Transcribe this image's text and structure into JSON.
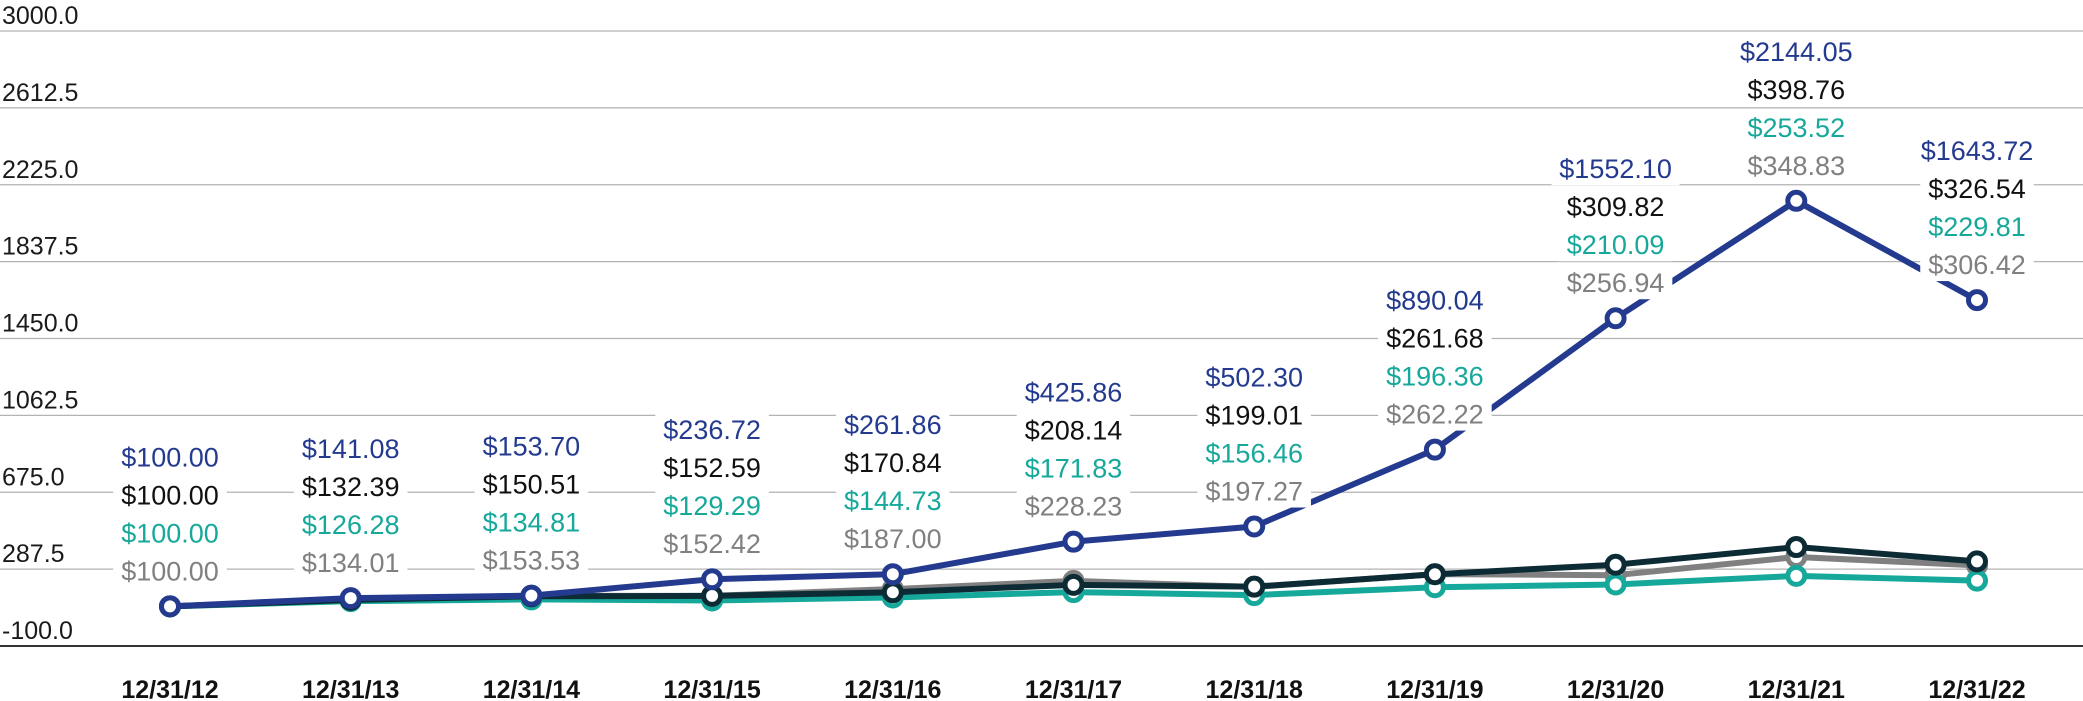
{
  "chart_data": {
    "type": "line",
    "categories": [
      "12/31/12",
      "12/31/13",
      "12/31/14",
      "12/31/15",
      "12/31/16",
      "12/31/17",
      "12/31/18",
      "12/31/19",
      "12/31/20",
      "12/31/21",
      "12/31/22"
    ],
    "ylim": [
      -100.0,
      3000.0
    ],
    "yticks": [
      "-100.0",
      "287.5",
      "675.0",
      "1062.5",
      "1450.0",
      "1837.5",
      "2225.0",
      "2612.5",
      "3000.0"
    ],
    "ytick_values": [
      -100,
      287.5,
      675,
      1062.5,
      1450,
      1837.5,
      2225,
      2612.5,
      3000
    ],
    "grid": true,
    "series": [
      {
        "color": "#233a8f",
        "values": [
          100.0,
          141.08,
          153.7,
          236.72,
          261.86,
          425.86,
          502.3,
          890.04,
          1552.1,
          2144.05,
          1643.72
        ],
        "labels": [
          "$100.00",
          "$141.08",
          "$153.70",
          "$236.72",
          "$261.86",
          "$425.86",
          "$502.30",
          "$890.04",
          "$1552.10",
          "$2144.05",
          "$1643.72"
        ]
      },
      {
        "color": "#0d2b35",
        "values": [
          100.0,
          132.39,
          150.51,
          152.59,
          170.84,
          208.14,
          199.01,
          261.68,
          309.82,
          398.76,
          326.54
        ],
        "labels": [
          "$100.00",
          "$132.39",
          "$150.51",
          "$152.59",
          "$170.84",
          "$208.14",
          "$199.01",
          "$261.68",
          "$309.82",
          "$398.76",
          "$326.54"
        ]
      },
      {
        "color": "#16a89a",
        "values": [
          100.0,
          126.28,
          134.81,
          129.29,
          144.73,
          171.83,
          156.46,
          196.36,
          210.09,
          253.52,
          229.81
        ],
        "labels": [
          "$100.00",
          "$126.28",
          "$134.81",
          "$129.29",
          "$144.73",
          "$171.83",
          "$156.46",
          "$196.36",
          "$210.09",
          "$253.52",
          "$229.81"
        ]
      },
      {
        "color": "#808080",
        "values": [
          100.0,
          134.01,
          153.53,
          152.42,
          187.0,
          228.23,
          197.27,
          262.22,
          256.94,
          348.83,
          306.42
        ],
        "labels": [
          "$100.00",
          "$134.01",
          "$153.53",
          "$152.42",
          "$187.00",
          "$228.23",
          "$197.27",
          "$262.22",
          "$256.94",
          "$348.83",
          "$306.42"
        ]
      }
    ]
  }
}
